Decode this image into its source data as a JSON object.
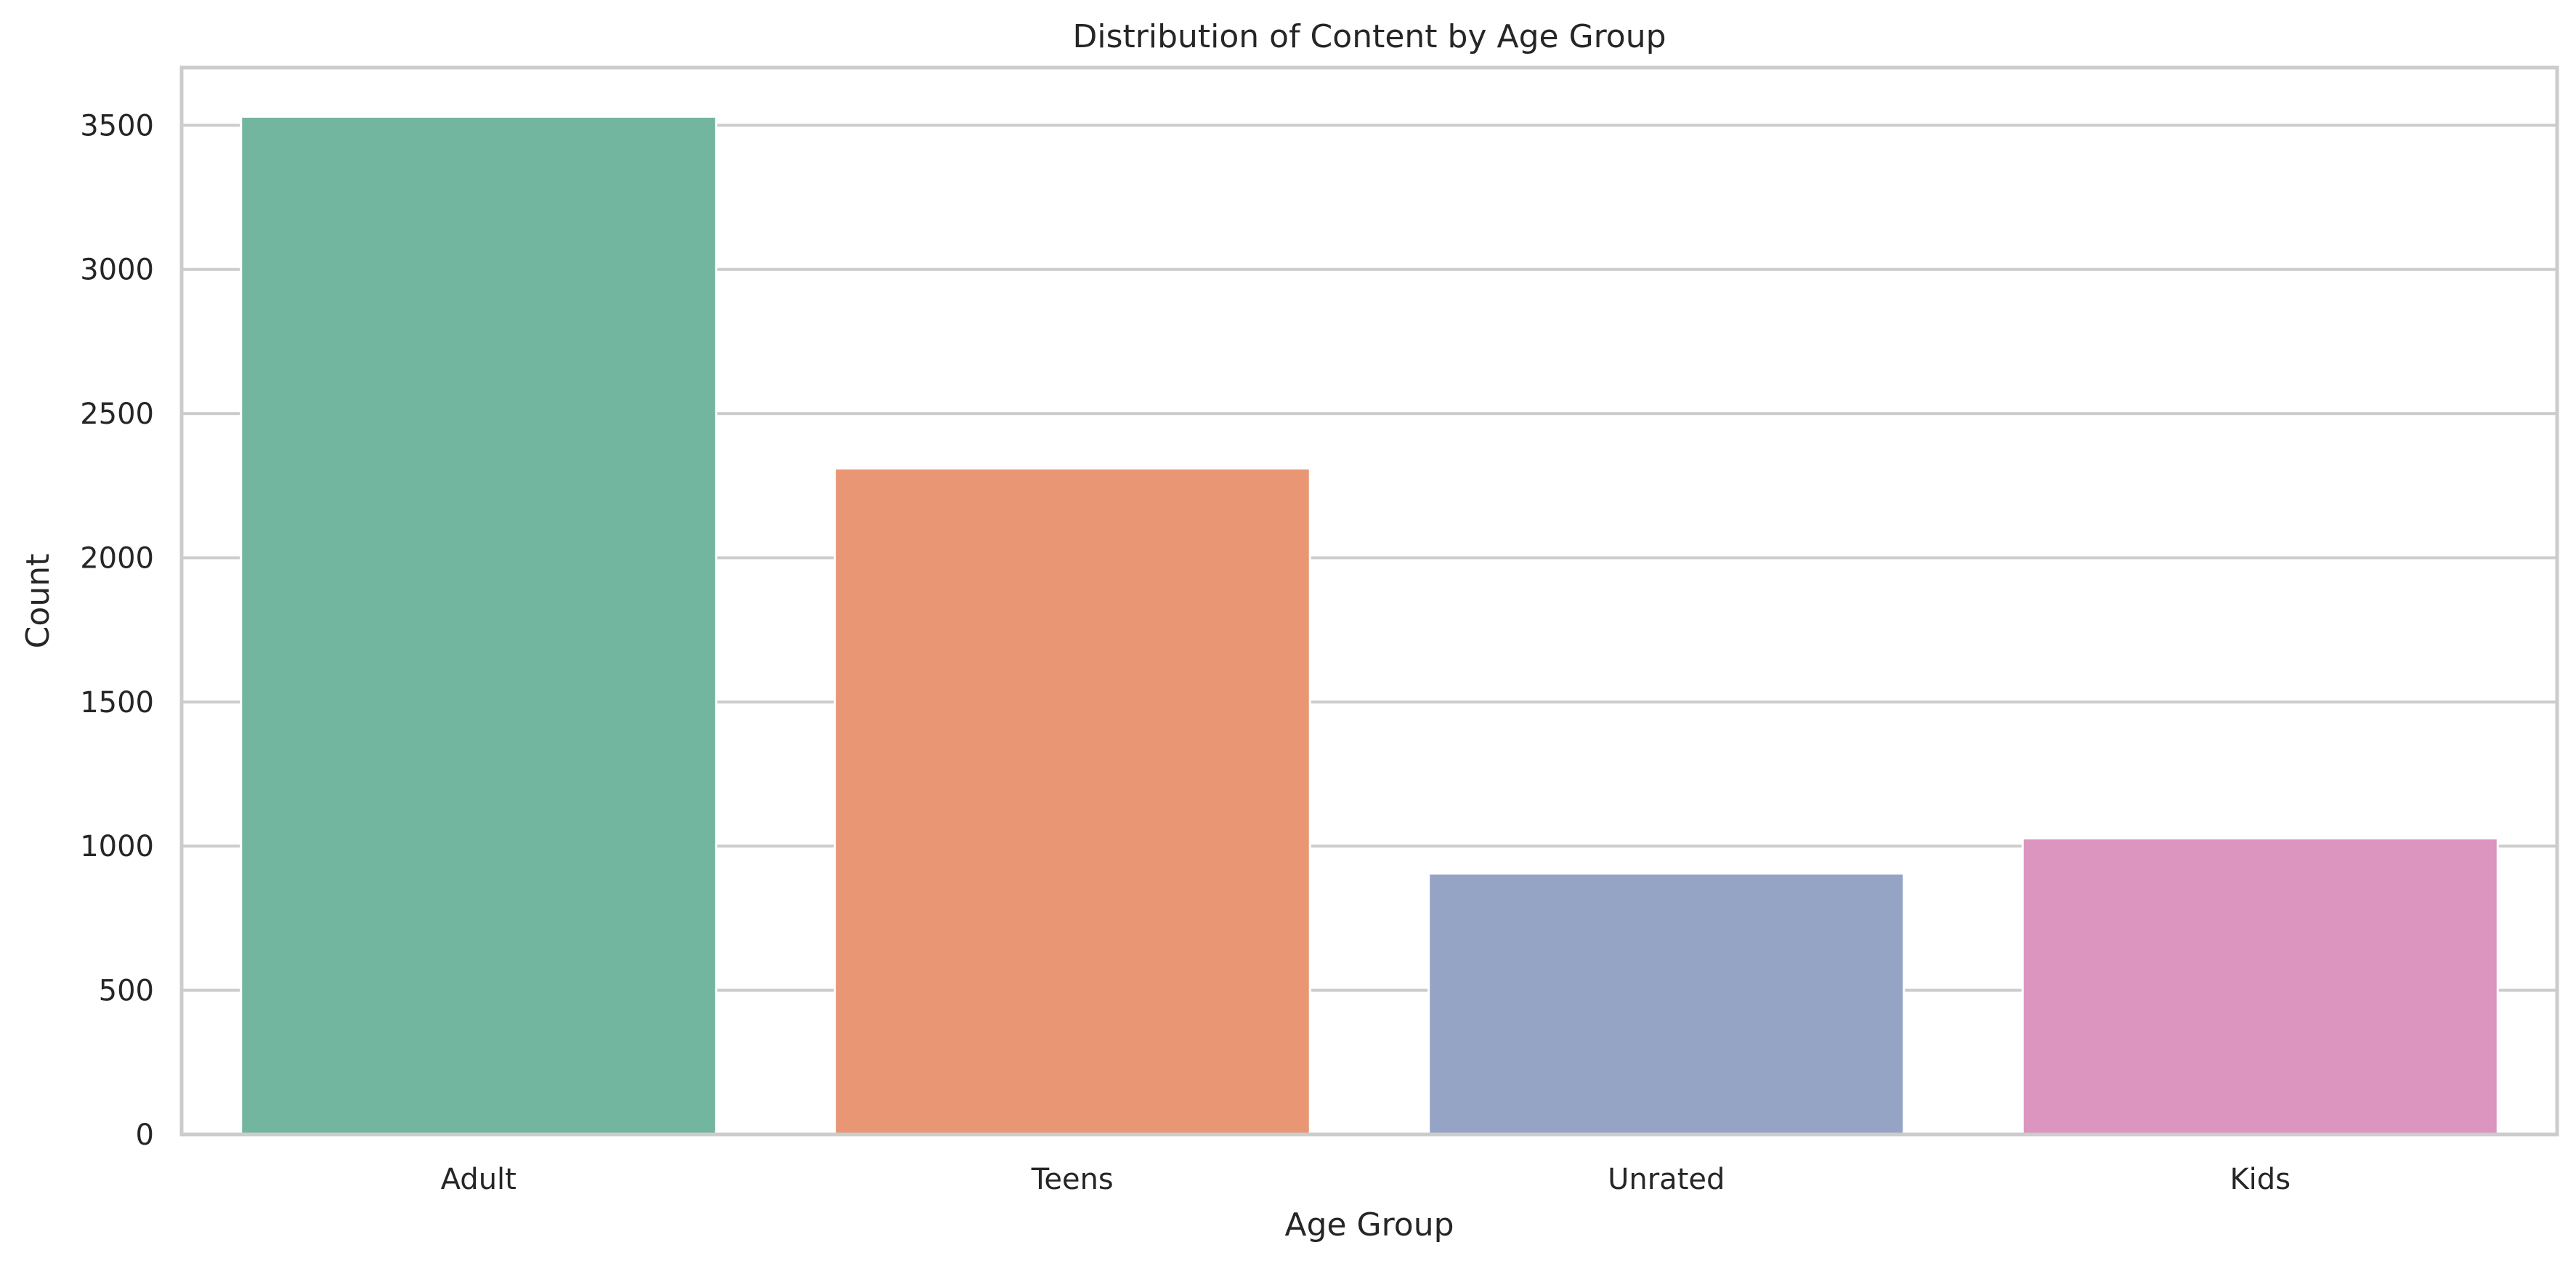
{
  "chart_data": {
    "type": "bar",
    "title": "Distribution of Content by Age Group",
    "xlabel": "Age Group",
    "ylabel": "Count",
    "categories": [
      "Adult",
      "Teens",
      "Unrated",
      "Kids"
    ],
    "values": [
      3530,
      2310,
      905,
      1027
    ],
    "ylim": [
      0,
      3700
    ],
    "yticks": [
      0,
      500,
      1000,
      1500,
      2000,
      2500,
      3000,
      3500
    ],
    "grid": "horizontal",
    "colors": {
      "bars": [
        "#73b6a0",
        "#e89674",
        "#95a4c4",
        "#db95bf"
      ],
      "grid": "#cccccc",
      "spine": "#cccccc",
      "text": "#262626",
      "background": "#ffffff"
    }
  }
}
